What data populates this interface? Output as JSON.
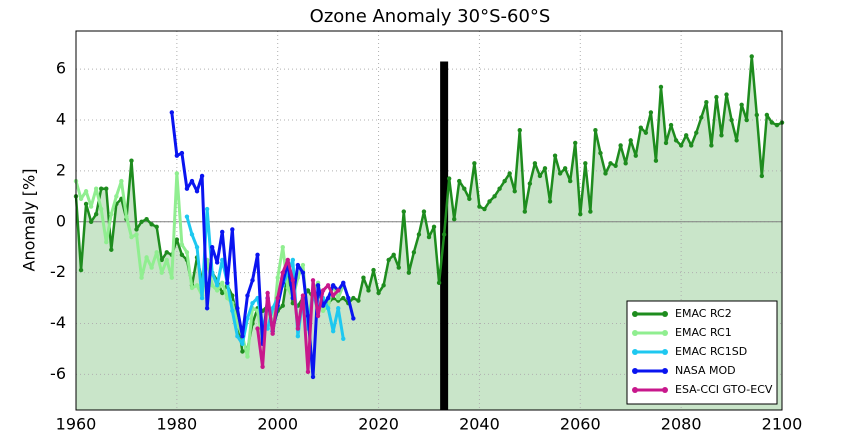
{
  "chart_data": {
    "type": "line",
    "title": "Ozone Anomaly 30°S-60°S",
    "y_label": "Anomaly [%]",
    "xlim": [
      1960,
      2100
    ],
    "xticks": [
      1960,
      1980,
      2000,
      2020,
      2040,
      2060,
      2080,
      2100
    ],
    "ylim": [
      -7.4,
      7.5
    ],
    "yticks": [
      -6,
      -4,
      -2,
      0,
      2,
      4,
      6
    ],
    "grid": true,
    "zero_line": true,
    "legend": "lower right",
    "fill_below_first_series": "#c9e5c9",
    "vline": {
      "x": 2033,
      "ymax": 6.3,
      "color": "#000000"
    },
    "series": [
      {
        "name": "EMAC RC2",
        "color": "#1e8c1e",
        "x": [
          1960,
          1961,
          1962,
          1963,
          1964,
          1965,
          1966,
          1967,
          1968,
          1969,
          1970,
          1971,
          1972,
          1973,
          1974,
          1975,
          1976,
          1977,
          1978,
          1979,
          1980,
          1981,
          1982,
          1983,
          1984,
          1985,
          1986,
          1987,
          1988,
          1989,
          1990,
          1991,
          1992,
          1993,
          1994,
          1995,
          1996,
          1997,
          1998,
          1999,
          2000,
          2001,
          2002,
          2003,
          2004,
          2005,
          2006,
          2007,
          2008,
          2009,
          2010,
          2011,
          2012,
          2013,
          2014,
          2015,
          2016,
          2017,
          2018,
          2019,
          2020,
          2021,
          2022,
          2023,
          2024,
          2025,
          2026,
          2027,
          2028,
          2029,
          2030,
          2031,
          2032,
          2033,
          2034,
          2035,
          2036,
          2037,
          2038,
          2039,
          2040,
          2041,
          2042,
          2043,
          2044,
          2045,
          2046,
          2047,
          2048,
          2049,
          2050,
          2051,
          2052,
          2053,
          2054,
          2055,
          2056,
          2057,
          2058,
          2059,
          2060,
          2061,
          2062,
          2063,
          2064,
          2065,
          2066,
          2067,
          2068,
          2069,
          2070,
          2071,
          2072,
          2073,
          2074,
          2075,
          2076,
          2077,
          2078,
          2079,
          2080,
          2081,
          2082,
          2083,
          2084,
          2085,
          2086,
          2087,
          2088,
          2089,
          2090,
          2091,
          2092,
          2093,
          2094,
          2095,
          2096,
          2097,
          2098,
          2099,
          2100
        ],
        "values": [
          1.0,
          -1.9,
          0.7,
          0.0,
          0.3,
          1.3,
          1.3,
          -1.1,
          0.7,
          0.9,
          0.1,
          2.4,
          -0.3,
          0.0,
          0.1,
          -0.1,
          -0.2,
          -1.5,
          -1.2,
          -1.3,
          -0.7,
          -1.3,
          -1.5,
          -2.5,
          -1.4,
          -2.3,
          -2.6,
          -2.0,
          -2.3,
          -2.8,
          -2.5,
          -2.9,
          -3.8,
          -5.1,
          -5.0,
          -4.0,
          -3.4,
          -3.5,
          -3.3,
          -4.2,
          -3.5,
          -3.3,
          -2.0,
          -3.2,
          -3.3,
          -3.0,
          -2.7,
          -3.0,
          -2.8,
          -3.2,
          -3.2,
          -3.0,
          -3.1,
          -3.0,
          -3.2,
          -3.0,
          -3.1,
          -2.2,
          -2.7,
          -1.9,
          -2.8,
          -2.5,
          -1.5,
          -1.3,
          -1.8,
          0.4,
          -2.0,
          -1.2,
          -0.5,
          0.4,
          -0.6,
          -0.2,
          -2.4,
          -0.5,
          1.7,
          0.1,
          1.6,
          1.3,
          0.9,
          2.3,
          0.6,
          0.5,
          0.8,
          1.0,
          1.3,
          1.6,
          1.9,
          1.2,
          3.6,
          0.4,
          1.5,
          2.3,
          1.8,
          2.1,
          0.8,
          2.6,
          1.9,
          2.1,
          1.6,
          3.1,
          0.3,
          2.3,
          0.4,
          3.6,
          2.7,
          1.9,
          2.3,
          2.2,
          3.0,
          2.3,
          3.2,
          2.6,
          3.7,
          3.5,
          4.3,
          2.4,
          5.3,
          3.1,
          3.8,
          3.2,
          3.0,
          3.4,
          3.0,
          3.5,
          4.1,
          4.7,
          3.0,
          4.9,
          3.4,
          5.0,
          4.0,
          3.2,
          4.6,
          4.0,
          6.5,
          4.2,
          1.8,
          4.2,
          3.9,
          3.8,
          3.9
        ]
      },
      {
        "name": "EMAC RC1",
        "color": "#90ee90",
        "x": [
          1960,
          1961,
          1962,
          1963,
          1964,
          1965,
          1966,
          1967,
          1968,
          1969,
          1970,
          1971,
          1972,
          1973,
          1974,
          1975,
          1976,
          1977,
          1978,
          1979,
          1980,
          1981,
          1982,
          1983,
          1984,
          1985,
          1986,
          1987,
          1988,
          1989,
          1990,
          1991,
          1992,
          1993,
          1994,
          1995,
          1996,
          1997,
          1998,
          1999,
          2000,
          2001,
          2002,
          2003,
          2004,
          2005,
          2006,
          2007,
          2008,
          2009,
          2010,
          2011,
          2012,
          2013
        ],
        "values": [
          1.6,
          0.9,
          1.2,
          0.6,
          1.3,
          0.5,
          -0.8,
          0.3,
          1.0,
          1.6,
          0.2,
          -0.6,
          -0.5,
          -2.2,
          -1.4,
          -1.8,
          -1.2,
          -2.0,
          -1.5,
          -2.2,
          1.9,
          -0.9,
          -1.2,
          -2.6,
          -2.5,
          -2.9,
          -1.5,
          -2.5,
          -2.7,
          -2.4,
          -3.0,
          -3.2,
          -4.0,
          -4.5,
          -5.3,
          -3.4,
          -3.5,
          -4.7,
          -3.2,
          -4.3,
          -2.2,
          -1.0,
          -2.6,
          -3.0,
          -2.2,
          -1.7,
          -3.9,
          -2.7,
          -2.4,
          -3.5,
          -3.3,
          -2.5,
          -3.0,
          -2.5
        ]
      },
      {
        "name": "EMAC RC1SD",
        "color": "#1ec8f0",
        "x": [
          1982,
          1983,
          1984,
          1985,
          1986,
          1987,
          1988,
          1989,
          1990,
          1991,
          1992,
          1993,
          1994,
          1995,
          1996,
          1997,
          1998,
          1999,
          2000,
          2001,
          2002,
          2003,
          2004,
          2005,
          2006,
          2007,
          2008,
          2009,
          2010,
          2011,
          2012,
          2013
        ],
        "values": [
          0.2,
          -0.5,
          -1.0,
          -3.0,
          0.5,
          -2.0,
          -2.5,
          -1.5,
          -2.4,
          -3.5,
          -4.5,
          -4.8,
          -3.8,
          -3.2,
          -3.0,
          -4.0,
          -4.2,
          -3.4,
          -3.0,
          -2.5,
          -2.0,
          -1.5,
          -4.5,
          -3.0,
          -4.2,
          -2.8,
          -3.5,
          -3.0,
          -3.4,
          -4.3,
          -3.4,
          -4.6
        ]
      },
      {
        "name": "NASA MOD",
        "color": "#0a14f0",
        "x": [
          1979,
          1980,
          1981,
          1982,
          1983,
          1984,
          1985,
          1986,
          1987,
          1988,
          1989,
          1990,
          1991,
          1992,
          1993,
          1994,
          1995,
          1996,
          1997,
          1998,
          1999,
          2000,
          2001,
          2002,
          2003,
          2004,
          2005,
          2006,
          2007,
          2008,
          2009,
          2010,
          2011,
          2012,
          2013,
          2014,
          2015
        ],
        "values": [
          4.3,
          2.6,
          2.7,
          1.3,
          1.6,
          1.2,
          1.8,
          -3.4,
          -1.0,
          -1.6,
          -0.4,
          -2.4,
          -0.3,
          -3.4,
          -4.5,
          -2.9,
          -2.3,
          -1.3,
          -4.8,
          -3.0,
          -4.3,
          -3.3,
          -2.4,
          -1.6,
          -3.0,
          -1.7,
          -2.0,
          -3.7,
          -6.1,
          -2.5,
          -3.3,
          -3.0,
          -2.5,
          -2.7,
          -2.4,
          -3.0,
          -3.8
        ]
      },
      {
        "name": "ESA-CCI GTO-ECV",
        "color": "#c8188c",
        "x": [
          1996,
          1997,
          1998,
          1999,
          2000,
          2001,
          2002,
          2003,
          2004,
          2005,
          2006,
          2007,
          2008,
          2009,
          2010,
          2011,
          2012
        ],
        "values": [
          -4.2,
          -5.7,
          -2.8,
          -4.4,
          -3.0,
          -2.0,
          -1.5,
          -2.3,
          -4.2,
          -2.9,
          -5.9,
          -2.3,
          -3.7,
          -2.7,
          -2.5,
          -2.9,
          -2.7
        ]
      }
    ]
  }
}
